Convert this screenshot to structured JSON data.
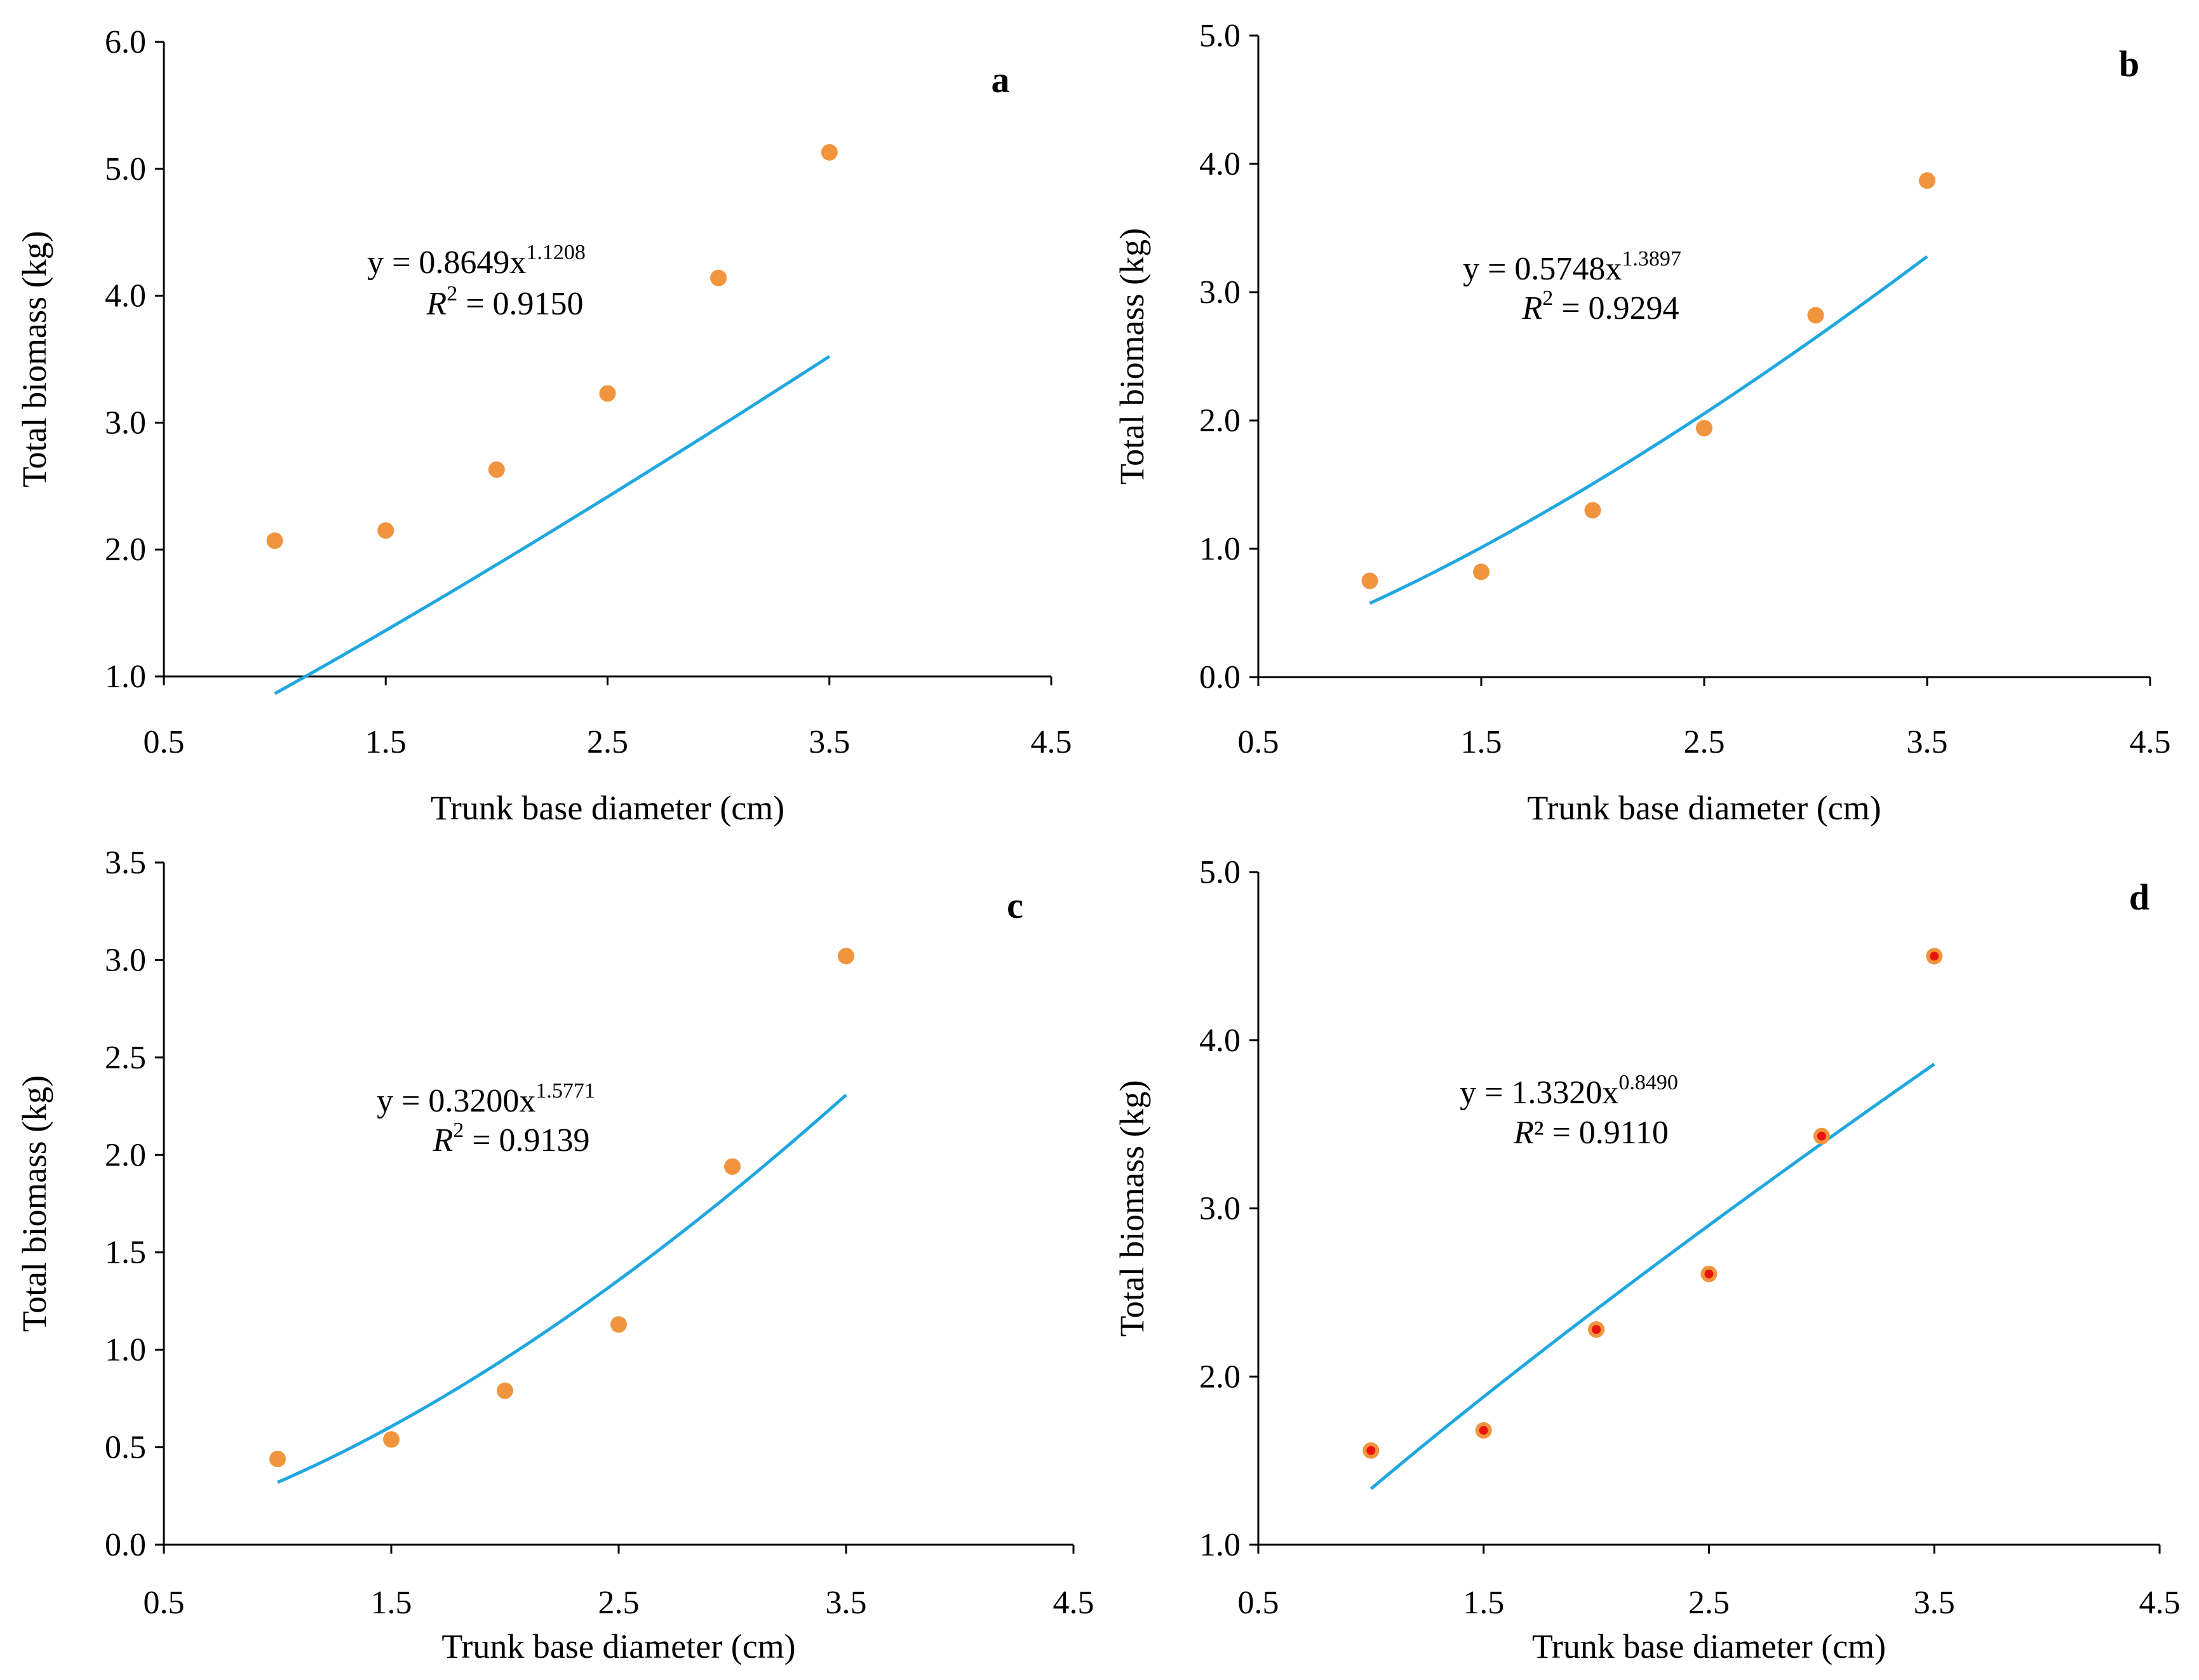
{
  "colors": {
    "fit_line": "#1fa7e0",
    "point_fill": "#f0953e",
    "point_fill_d": "#f0953e",
    "point_center_d": "#e8150f",
    "axis": "#000000"
  },
  "chart_data": [
    {
      "type": "scatter",
      "panel_label": "a",
      "title": "",
      "xlabel": "Trunk base diameter (cm)",
      "ylabel": "Total biomass (kg)",
      "xlim": [
        0.5,
        4.5
      ],
      "ylim": [
        1.0,
        6.0
      ],
      "x_ticks": [
        "0.5",
        "1.5",
        "2.5",
        "3.5",
        "4.5"
      ],
      "y_ticks": [
        "1.0",
        "2.0",
        "3.0",
        "4.0",
        "5.0",
        "6.0"
      ],
      "x_tick_values": [
        0.5,
        1.5,
        2.5,
        3.5,
        4.5
      ],
      "y_tick_values": [
        1.0,
        2.0,
        3.0,
        4.0,
        5.0,
        6.0
      ],
      "x": [
        1.0,
        1.5,
        2.0,
        2.5,
        3.0,
        3.5
      ],
      "y": [
        2.07,
        2.15,
        2.63,
        3.23,
        4.14,
        5.13
      ],
      "fit": {
        "type": "power",
        "a": 0.8649,
        "b": 1.1208,
        "x_range": [
          1.0,
          3.5
        ]
      },
      "equation_prefix": "y = 0.8649x",
      "equation_exponent": "1.1208",
      "r2_symbol": "R",
      "r2_exp": "2",
      "r2_value": " = 0.9150",
      "point_style": "plain"
    },
    {
      "type": "scatter",
      "panel_label": "b",
      "title": "",
      "xlabel": "Trunk base diameter (cm)",
      "ylabel": "Total biomass (kg)",
      "xlim": [
        0.5,
        4.5
      ],
      "ylim": [
        0.0,
        5.0
      ],
      "x_ticks": [
        "0.5",
        "1.5",
        "2.5",
        "3.5",
        "4.5"
      ],
      "y_ticks": [
        "0.0",
        "1.0",
        "2.0",
        "3.0",
        "4.0",
        "5.0"
      ],
      "x_tick_values": [
        0.5,
        1.5,
        2.5,
        3.5,
        4.5
      ],
      "y_tick_values": [
        0.0,
        1.0,
        2.0,
        3.0,
        4.0,
        5.0
      ],
      "x": [
        1.0,
        1.5,
        2.0,
        2.5,
        3.0,
        3.5
      ],
      "y": [
        0.75,
        0.82,
        1.3,
        1.94,
        2.82,
        3.87
      ],
      "fit": {
        "type": "power",
        "a": 0.5748,
        "b": 1.3897,
        "x_range": [
          1.0,
          3.5
        ]
      },
      "equation_prefix": "y = 0.5748x",
      "equation_exponent": "1.3897",
      "r2_symbol": "R",
      "r2_exp": "2",
      "r2_value": " = 0.9294",
      "point_style": "plain"
    },
    {
      "type": "scatter",
      "panel_label": "c",
      "title": "",
      "xlabel": "Trunk base diameter (cm)",
      "ylabel": "Total biomass (kg)",
      "xlim": [
        0.5,
        4.5
      ],
      "ylim": [
        0.0,
        3.5
      ],
      "x_ticks": [
        "0.5",
        "1.5",
        "2.5",
        "3.5",
        "4.5"
      ],
      "y_ticks": [
        "0.0",
        "0.5",
        "1.0",
        "1.5",
        "2.0",
        "2.5",
        "3.0",
        "3.5"
      ],
      "x_tick_values": [
        0.5,
        1.5,
        2.5,
        3.5,
        4.5
      ],
      "y_tick_values": [
        0.0,
        0.5,
        1.0,
        1.5,
        2.0,
        2.5,
        3.0,
        3.5
      ],
      "x": [
        1.0,
        1.5,
        2.0,
        2.5,
        3.0,
        3.5
      ],
      "y": [
        0.44,
        0.54,
        0.79,
        1.13,
        1.94,
        3.02
      ],
      "fit": {
        "type": "power",
        "a": 0.32,
        "b": 1.5771,
        "x_range": [
          1.0,
          3.5
        ]
      },
      "equation_prefix": "y = 0.3200x",
      "equation_exponent": "1.5771",
      "r2_symbol": "R",
      "r2_exp": "2",
      "r2_value": " = 0.9139",
      "point_style": "plain"
    },
    {
      "type": "scatter",
      "panel_label": "d",
      "title": "",
      "xlabel": "Trunk base diameter (cm)",
      "ylabel": "Total biomass (kg)",
      "xlim": [
        0.5,
        4.5
      ],
      "ylim": [
        1.0,
        5.0
      ],
      "x_ticks": [
        "0.5",
        "1.5",
        "2.5",
        "3.5",
        "4.5"
      ],
      "y_ticks": [
        "1.0",
        "2.0",
        "3.0",
        "4.0",
        "5.0"
      ],
      "x_tick_values": [
        0.5,
        1.5,
        2.5,
        3.5,
        4.5
      ],
      "y_tick_values": [
        1.0,
        2.0,
        3.0,
        4.0,
        5.0
      ],
      "x": [
        1.0,
        1.5,
        2.0,
        2.5,
        3.0,
        3.5
      ],
      "y": [
        1.56,
        1.68,
        2.28,
        2.61,
        3.43,
        4.5
      ],
      "fit": {
        "type": "power",
        "a": 1.332,
        "b": 0.849,
        "x_range": [
          1.0,
          3.5
        ]
      },
      "equation_prefix": "y = 1.3320x",
      "equation_exponent": "0.8490",
      "r2_symbol": "R",
      "r2_exp": "²",
      "r2_value": " = 0.9110",
      "point_style": "dotted"
    }
  ]
}
